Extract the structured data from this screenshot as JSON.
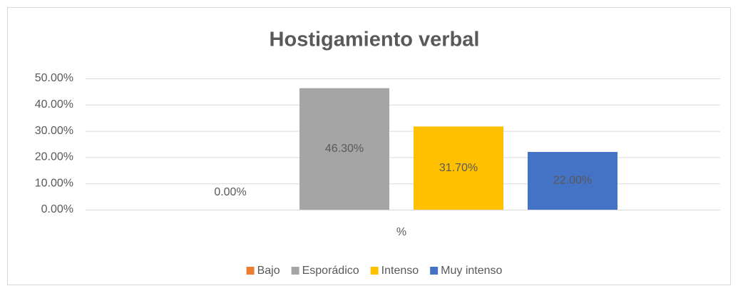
{
  "chart_data": {
    "type": "bar",
    "title": "Hostigamiento verbal",
    "categories": [
      "%"
    ],
    "series": [
      {
        "name": "Bajo",
        "color": "#ed7d31",
        "values": [
          0
        ],
        "value_labels": [
          "0.00%"
        ]
      },
      {
        "name": "Esporádico",
        "color": "#a5a5a5",
        "values": [
          46.3
        ],
        "value_labels": [
          "46.30%"
        ]
      },
      {
        "name": "Intenso",
        "color": "#ffc000",
        "values": [
          31.7
        ],
        "value_labels": [
          "31.70%"
        ]
      },
      {
        "name": "Muy intenso",
        "color": "#4472c4",
        "values": [
          22.0
        ],
        "value_labels": [
          "22.00%"
        ]
      }
    ],
    "ylim": [
      0,
      50
    ],
    "yticks": [
      {
        "value": 0,
        "label": "0.00%"
      },
      {
        "value": 10,
        "label": "10.00%"
      },
      {
        "value": 20,
        "label": "20.00%"
      },
      {
        "value": 30,
        "label": "30.00%"
      },
      {
        "value": 40,
        "label": "40.00%"
      },
      {
        "value": 50,
        "label": "50.00%"
      }
    ],
    "grid": true,
    "legend": "bottom"
  }
}
